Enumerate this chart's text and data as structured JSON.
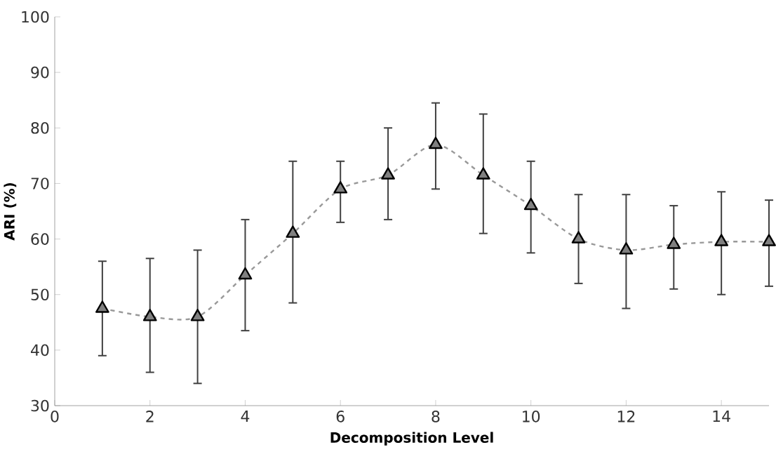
{
  "chart_data": {
    "type": "line",
    "xlabel": "Decomposition Level",
    "ylabel": "ARI (%)",
    "x": [
      1,
      2,
      3,
      4,
      5,
      6,
      7,
      8,
      9,
      10,
      11,
      12,
      13,
      14,
      15
    ],
    "values": [
      47.5,
      46,
      46,
      53.5,
      61,
      69,
      71.5,
      77,
      71.5,
      66,
      60,
      58,
      59,
      59.5,
      59.5
    ],
    "errors": [
      [
        39,
        56
      ],
      [
        36,
        56.5
      ],
      [
        34,
        58
      ],
      [
        43.5,
        63.5
      ],
      [
        48.5,
        74
      ],
      [
        63,
        74
      ],
      [
        63.5,
        80
      ],
      [
        69,
        84.5
      ],
      [
        61,
        82.5
      ],
      [
        57.5,
        74
      ],
      [
        52,
        68
      ],
      [
        47.5,
        68
      ],
      [
        51,
        66
      ],
      [
        50,
        68.5
      ],
      [
        51.5,
        67
      ]
    ],
    "color": "#808080",
    "marker": "triangle",
    "line_style": "dashed",
    "xlim": [
      0,
      15
    ],
    "ylim": [
      30,
      100
    ],
    "xticks": [
      0,
      2,
      4,
      6,
      8,
      10,
      12,
      14
    ],
    "yticks": [
      30,
      40,
      50,
      60,
      70,
      80,
      90,
      100
    ]
  }
}
